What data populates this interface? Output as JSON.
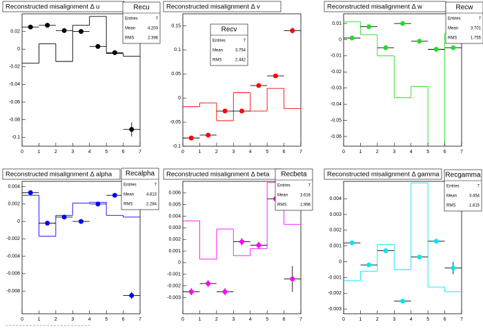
{
  "chart_data": [
    {
      "type": "histogram",
      "title": "Reconstructed misalignment Δ u",
      "color": "#000000",
      "bins": [
        0,
        1,
        2,
        3,
        4,
        5,
        6,
        7
      ],
      "values": [
        -0.016,
        0.006,
        -0.014,
        0.027,
        0.037,
        -0.005,
        -0.008
      ],
      "points": {
        "x": [
          0.5,
          1.5,
          2.5,
          3.5,
          4.5,
          5.5,
          6.5
        ],
        "y": [
          0.025,
          0.027,
          0.021,
          0.02,
          0.003,
          -0.004,
          -0.091
        ],
        "yerr": [
          0.002,
          0.002,
          0.002,
          0.002,
          0.002,
          0.002,
          0.008
        ]
      },
      "xlim": [
        0,
        7
      ],
      "xticks": [
        0,
        1,
        2,
        3,
        4,
        5,
        6,
        7
      ],
      "ylim": [
        -0.11,
        0.04
      ],
      "yticks": [
        -0.1,
        -0.08,
        -0.06,
        -0.04,
        -0.02,
        0,
        0.02
      ],
      "stats": {
        "name": "Recu",
        "rows": [
          {
            "label": "Entries",
            "value": 7
          },
          {
            "label": "Mean",
            "value": 4.203
          },
          {
            "label": "RMS",
            "value": 2.396
          }
        ]
      }
    },
    {
      "type": "histogram",
      "title": "Reconstructed misalignment Δ v",
      "color": "#ff0000",
      "bins": [
        0,
        1,
        2,
        3,
        4,
        5,
        6,
        7
      ],
      "values": [
        -0.018,
        -0.01,
        -0.047,
        0.011,
        -0.027,
        0.02,
        -0.022
      ],
      "points": {
        "x": [
          0.5,
          1.5,
          2.5,
          3.5,
          4.5,
          5.5,
          6.5
        ],
        "y": [
          -0.083,
          -0.077,
          -0.027,
          -0.027,
          0.026,
          0.046,
          0.14
        ],
        "yerr": [
          0.004,
          0.004,
          0.004,
          0.004,
          0.004,
          0.004,
          0.006
        ]
      },
      "xlim": [
        0,
        7
      ],
      "xticks": [
        0,
        1,
        2,
        3,
        4,
        5,
        6,
        7
      ],
      "ylim": [
        -0.1,
        0.175
      ],
      "yticks": [
        -0.1,
        -0.05,
        0,
        0.05,
        0.1,
        0.15
      ],
      "stats": {
        "name": "Recv",
        "rows": [
          {
            "label": "Entries",
            "value": 7
          },
          {
            "label": "Mean",
            "value": 3.754
          },
          {
            "label": "RMS",
            "value": 2.442
          }
        ]
      }
    },
    {
      "type": "histogram",
      "title": "Reconstructed misalignment Δ w",
      "color": "#22dd22",
      "bins": [
        0,
        1,
        2,
        3,
        4,
        5,
        6,
        7
      ],
      "values": [
        0.011,
        0.003,
        -0.01,
        -0.036,
        -0.029,
        -0.07,
        0.004
      ],
      "points": {
        "x": [
          0.5,
          1.5,
          2.5,
          3.5,
          4.5,
          5.5,
          6.5
        ],
        "y": [
          0.001,
          0.008,
          -0.005,
          0.01,
          -0.001,
          -0.006,
          -0.005
        ],
        "yerr": [
          0.001,
          0.001,
          0.001,
          0.001,
          0.001,
          0.001,
          0.001
        ]
      },
      "xlim": [
        0,
        7
      ],
      "xticks": [
        0,
        1,
        2,
        3,
        4,
        5,
        6,
        7
      ],
      "ylim": [
        -0.066,
        0.016
      ],
      "yticks": [
        -0.06,
        -0.05,
        -0.04,
        -0.03,
        -0.02,
        -0.01,
        0,
        0.01
      ],
      "stats": {
        "name": "Recw",
        "rows": [
          {
            "label": "Entries",
            "value": 7
          },
          {
            "label": "Mean",
            "value": 3.701
          },
          {
            "label": "RMS",
            "value": 1.755
          }
        ]
      }
    },
    {
      "type": "histogram",
      "title": "Reconstructed misalignment Δ alpha",
      "color": "#0000ff",
      "bins": [
        0,
        1,
        2,
        3,
        4,
        5,
        6,
        7
      ],
      "values": [
        0.003,
        -0.0017,
        0.0007,
        0.0021,
        0.0022,
        0.0007,
        0.0005
      ],
      "points": {
        "x": [
          0.5,
          1.5,
          2.5,
          3.5,
          4.5,
          5.5,
          6.5
        ],
        "y": [
          0.0033,
          -0.0002,
          0.0005,
          0,
          0.002,
          0.003,
          -0.0085
        ],
        "yerr": [
          0.0002,
          0.0002,
          0.0002,
          0.0002,
          0.0002,
          0.0002,
          0.0004
        ]
      },
      "xlim": [
        0,
        7
      ],
      "xticks": [
        0,
        1,
        2,
        3,
        4,
        5,
        6,
        7
      ],
      "ylim": [
        -0.0106,
        0.0046
      ],
      "yticks": [
        -0.008,
        -0.006,
        -0.004,
        -0.002,
        0,
        0.002,
        0.004
      ],
      "stats": {
        "name": "Recalpha",
        "rows": [
          {
            "label": "Entries",
            "value": 7
          },
          {
            "label": "Mean",
            "value": 4.813
          },
          {
            "label": "RMS",
            "value": 2.284
          }
        ]
      }
    },
    {
      "type": "histogram",
      "title": "Reconstructed misalignment Δ beta",
      "color": "#ff00ff",
      "bins": [
        0,
        1,
        2,
        3,
        4,
        5,
        6,
        7
      ],
      "values": [
        0.0036,
        0.0003,
        0.0029,
        0.0006,
        0.0012,
        0.0069,
        0.0033
      ],
      "points": {
        "x": [
          0.5,
          1.5,
          2.5,
          3.5,
          4.5,
          5.5,
          6.5
        ],
        "y": [
          -0.0025,
          -0.0018,
          -0.0025,
          0.0018,
          0.0015,
          0.0055,
          -0.0014
        ],
        "yerr": [
          0.0003,
          0.0003,
          0.0003,
          0.0003,
          0.0003,
          0.0003,
          0.0011
        ]
      },
      "xlim": [
        0,
        7
      ],
      "xticks": [
        0,
        1,
        2,
        3,
        4,
        5,
        6,
        7
      ],
      "ylim": [
        -0.0044,
        0.007
      ],
      "yticks": [
        -0.003,
        -0.002,
        -0.001,
        0,
        0.001,
        0.002,
        0.003,
        0.004,
        0.005,
        0.006
      ],
      "stats": {
        "name": "Recbeta",
        "rows": [
          {
            "label": "Entries",
            "value": 7
          },
          {
            "label": "Mean",
            "value": 3.616
          },
          {
            "label": "RMS",
            "value": 1.996
          }
        ]
      }
    },
    {
      "type": "histogram",
      "title": "Reconstructed misalignment Δ gamma",
      "color": "#00e5ee",
      "bins": [
        0,
        1,
        2,
        3,
        4,
        5,
        6,
        7
      ],
      "values": [
        -0.0012,
        -0.0006,
        0.0011,
        -0.0005,
        0.005,
        -0.0016,
        -0.0019
      ],
      "points": {
        "x": [
          0.5,
          1.5,
          2.5,
          3.5,
          4.5,
          5.5,
          6.5
        ],
        "y": [
          0.0012,
          -0.0002,
          0.0007,
          -0.0025,
          0.0003,
          0.0013,
          -0.0004
        ],
        "yerr": [
          0.0001,
          0.0001,
          0.0001,
          0.0001,
          0.0001,
          0.0001,
          0.0004
        ]
      },
      "xlim": [
        0,
        7
      ],
      "xticks": [
        0,
        1,
        2,
        3,
        4,
        5,
        6,
        7
      ],
      "ylim": [
        -0.0033,
        0.0051
      ],
      "yticks": [
        -0.003,
        -0.002,
        -0.001,
        0,
        0.001,
        0.002,
        0.003,
        0.004
      ],
      "stats": {
        "name": "Recgamma",
        "rows": [
          {
            "label": "Entries",
            "value": 7
          },
          {
            "label": "Mean",
            "value": 3.454
          },
          {
            "label": "RMS",
            "value": 1.815
          }
        ]
      }
    }
  ]
}
